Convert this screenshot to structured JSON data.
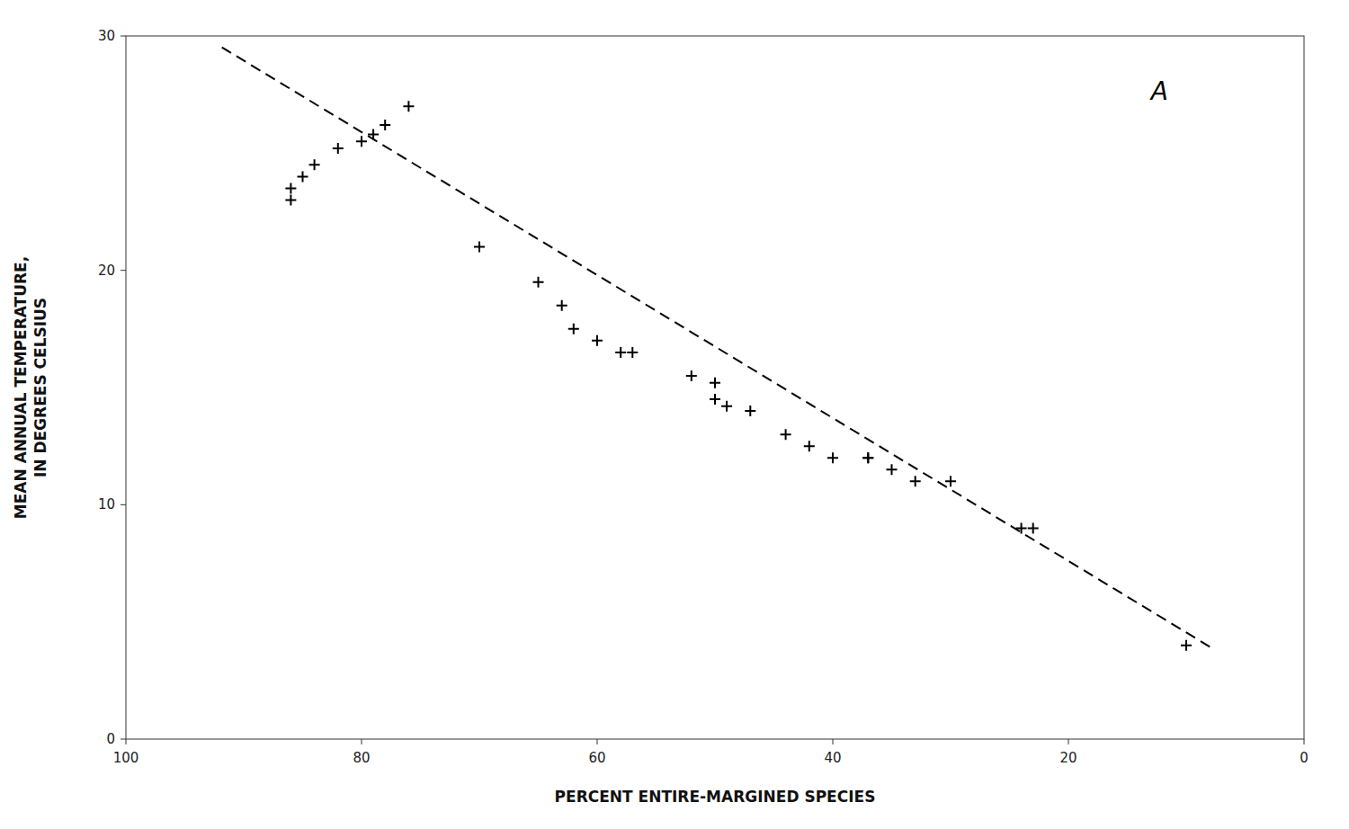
{
  "chart_data": {
    "type": "scatter",
    "xlabel": "PERCENT ENTIRE-MARGINED SPECIES",
    "ylabel": "MEAN ANNUAL TEMPERATURE,\nIN DEGREES CELSIUS",
    "annotation": "A",
    "xlim": [
      100,
      0
    ],
    "ylim": [
      0,
      30
    ],
    "xticks": [
      100,
      80,
      60,
      40,
      20,
      0
    ],
    "yticks": [
      0,
      10,
      20,
      30
    ],
    "grid": false,
    "series": [
      {
        "type": "scatter",
        "marker": "plus",
        "color": "#000000",
        "x": [
          76,
          78,
          79,
          80,
          82,
          84,
          85,
          86,
          86,
          70,
          65,
          63,
          62,
          60,
          58,
          57,
          52,
          50,
          50,
          49,
          47,
          44,
          42,
          40,
          37,
          37,
          35,
          33,
          30,
          24,
          23,
          10
        ],
        "values": [
          27.0,
          26.2,
          25.8,
          25.5,
          25.2,
          24.5,
          24.0,
          23.5,
          23.0,
          21.0,
          19.5,
          18.5,
          17.5,
          17.0,
          16.5,
          16.5,
          15.5,
          15.2,
          14.5,
          14.2,
          14.0,
          13.0,
          12.5,
          12.0,
          12.0,
          12.0,
          11.5,
          11.0,
          11.0,
          9.0,
          9.0,
          4.0
        ]
      },
      {
        "type": "line",
        "line_style": "dashed",
        "color": "#000000",
        "x": [
          8,
          92
        ],
        "values": [
          3.94,
          29.56
        ]
      }
    ]
  }
}
